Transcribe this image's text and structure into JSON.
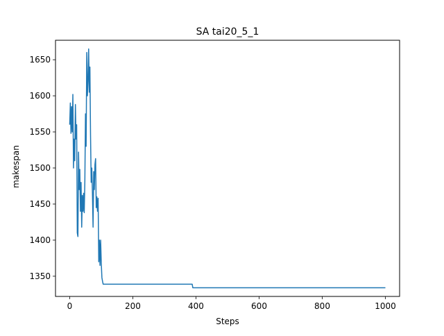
{
  "chart_data": {
    "type": "line",
    "title": "SA tai20_5_1",
    "xlabel": "Steps",
    "ylabel": "makespan",
    "xlim": [
      -45,
      1045
    ],
    "ylim": [
      1322,
      1677
    ],
    "xticks": [
      0,
      200,
      400,
      600,
      800,
      1000
    ],
    "yticks": [
      1350,
      1400,
      1450,
      1500,
      1550,
      1600,
      1650
    ],
    "grid": false,
    "legend": "none",
    "series": [
      {
        "color": "#1f77b4",
        "x": [
          0,
          2,
          4,
          6,
          8,
          10,
          12,
          14,
          16,
          18,
          20,
          22,
          24,
          26,
          28,
          30,
          32,
          34,
          36,
          38,
          40,
          42,
          44,
          46,
          48,
          50,
          52,
          54,
          56,
          58,
          60,
          62,
          64,
          66,
          68,
          70,
          72,
          74,
          76,
          78,
          80,
          82,
          84,
          86,
          88,
          90,
          92,
          94,
          96,
          98,
          100,
          102,
          104,
          106,
          108,
          110,
          112,
          114,
          116,
          200,
          300,
          388,
          390,
          392,
          500,
          600,
          800,
          1000
        ],
        "y": [
          1560,
          1590,
          1548,
          1585,
          1550,
          1602,
          1500,
          1540,
          1510,
          1588,
          1540,
          1560,
          1410,
          1405,
          1522,
          1470,
          1498,
          1440,
          1480,
          1418,
          1462,
          1440,
          1465,
          1438,
          1482,
          1575,
          1530,
          1660,
          1600,
          1620,
          1665,
          1605,
          1640,
          1545,
          1480,
          1500,
          1465,
          1418,
          1495,
          1470,
          1505,
          1513,
          1445,
          1460,
          1440,
          1458,
          1370,
          1400,
          1365,
          1400,
          1368,
          1348,
          1343,
          1339,
          1339,
          1339,
          1339,
          1339,
          1339,
          1339,
          1339,
          1339,
          1334,
          1334,
          1334,
          1334,
          1334,
          1334
        ]
      }
    ]
  }
}
